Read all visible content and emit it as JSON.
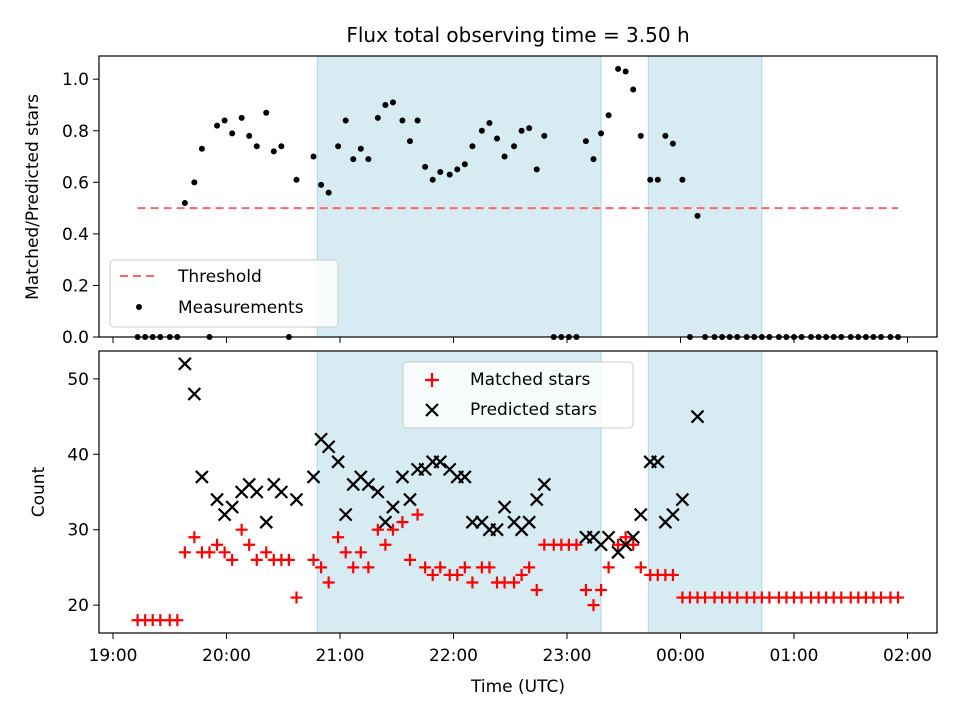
{
  "title": "Flux total observing time = 3.50 h",
  "xlabel": "Time (UTC)",
  "x_ticks": [
    "19:00",
    "20:00",
    "21:00",
    "22:00",
    "23:00",
    "00:00",
    "01:00",
    "02:00"
  ],
  "colors": {
    "shade": "#add8e6",
    "threshold": "#ff6666",
    "matched": "#ff0000",
    "predicted": "#000000"
  },
  "chart_data": [
    {
      "type": "scatter",
      "ylabel": "Matched/Predicted stars",
      "ylim": [
        0,
        1.09
      ],
      "y_ticks": [
        "0.0",
        "0.2",
        "0.4",
        "0.6",
        "0.8",
        "1.0"
      ],
      "legend_position": "lower-left",
      "threshold": {
        "name": "Threshold",
        "value": 0.5,
        "x_range": [
          "19:13",
          "01:55"
        ]
      },
      "shaded_spans": [
        [
          "20:48",
          "23:18"
        ],
        [
          "23:43",
          "00:43"
        ]
      ],
      "series": [
        {
          "name": "Measurements",
          "marker": "dot",
          "points": [
            [
              "19:13",
              0
            ],
            [
              "19:17",
              0
            ],
            [
              "19:21",
              0
            ],
            [
              "19:25",
              0
            ],
            [
              "19:30",
              0
            ],
            [
              "19:34",
              0
            ],
            [
              "19:38",
              0.52
            ],
            [
              "19:43",
              0.6
            ],
            [
              "19:47",
              0.73
            ],
            [
              "19:51",
              0
            ],
            [
              "19:55",
              0.82
            ],
            [
              "19:59",
              0.84
            ],
            [
              "20:03",
              0.79
            ],
            [
              "20:08",
              0.85
            ],
            [
              "20:12",
              0.78
            ],
            [
              "20:16",
              0.74
            ],
            [
              "20:21",
              0.87
            ],
            [
              "20:25",
              0.72
            ],
            [
              "20:29",
              0.74
            ],
            [
              "20:33",
              0
            ],
            [
              "20:37",
              0.61
            ],
            [
              "20:46",
              0.7
            ],
            [
              "20:50",
              0.59
            ],
            [
              "20:54",
              0.56
            ],
            [
              "20:59",
              0.74
            ],
            [
              "21:03",
              0.84
            ],
            [
              "21:07",
              0.69
            ],
            [
              "21:11",
              0.73
            ],
            [
              "21:15",
              0.69
            ],
            [
              "21:20",
              0.85
            ],
            [
              "21:24",
              0.9
            ],
            [
              "21:28",
              0.91
            ],
            [
              "21:33",
              0.84
            ],
            [
              "21:37",
              0.76
            ],
            [
              "21:41",
              0.84
            ],
            [
              "21:45",
              0.66
            ],
            [
              "21:49",
              0.61
            ],
            [
              "21:53",
              0.64
            ],
            [
              "21:58",
              0.63
            ],
            [
              "22:02",
              0.65
            ],
            [
              "22:06",
              0.67
            ],
            [
              "22:10",
              0.74
            ],
            [
              "22:15",
              0.8
            ],
            [
              "22:19",
              0.83
            ],
            [
              "22:23",
              0.77
            ],
            [
              "22:27",
              0.7
            ],
            [
              "22:32",
              0.74
            ],
            [
              "22:36",
              0.8
            ],
            [
              "22:40",
              0.81
            ],
            [
              "22:44",
              0.65
            ],
            [
              "22:48",
              0.78
            ],
            [
              "22:53",
              0
            ],
            [
              "22:57",
              0
            ],
            [
              "23:01",
              0
            ],
            [
              "23:05",
              0
            ],
            [
              "23:10",
              0.76
            ],
            [
              "23:14",
              0.69
            ],
            [
              "23:18",
              0.79
            ],
            [
              "23:22",
              0.86
            ],
            [
              "23:27",
              1.04
            ],
            [
              "23:31",
              1.03
            ],
            [
              "23:35",
              0.96
            ],
            [
              "23:39",
              0.78
            ],
            [
              "23:44",
              0.61
            ],
            [
              "23:48",
              0.61
            ],
            [
              "23:52",
              0.78
            ],
            [
              "23:56",
              0.75
            ],
            [
              "00:01",
              0.61
            ],
            [
              "00:05",
              0
            ],
            [
              "00:09",
              0.47
            ],
            [
              "00:13",
              0
            ],
            [
              "00:18",
              0
            ],
            [
              "00:22",
              0
            ],
            [
              "00:26",
              0
            ],
            [
              "00:30",
              0
            ],
            [
              "00:35",
              0
            ],
            [
              "00:39",
              0
            ],
            [
              "00:43",
              0
            ],
            [
              "00:47",
              0
            ],
            [
              "00:52",
              0
            ],
            [
              "00:56",
              0
            ],
            [
              "01:00",
              0
            ],
            [
              "01:04",
              0
            ],
            [
              "01:09",
              0
            ],
            [
              "01:13",
              0
            ],
            [
              "01:17",
              0
            ],
            [
              "01:21",
              0
            ],
            [
              "01:25",
              0
            ],
            [
              "01:30",
              0
            ],
            [
              "01:34",
              0
            ],
            [
              "01:38",
              0
            ],
            [
              "01:42",
              0
            ],
            [
              "01:46",
              0
            ],
            [
              "01:51",
              0
            ],
            [
              "01:55",
              0
            ]
          ]
        }
      ]
    },
    {
      "type": "scatter",
      "ylabel": "Count",
      "ylim": [
        16.3,
        53.7
      ],
      "y_ticks": [
        "20",
        "30",
        "40",
        "50"
      ],
      "legend_position": "top-center",
      "shaded_spans": [
        [
          "20:48",
          "23:18"
        ],
        [
          "23:43",
          "00:43"
        ]
      ],
      "series": [
        {
          "name": "Matched stars",
          "marker": "plus",
          "points": [
            [
              "19:13",
              18
            ],
            [
              "19:17",
              18
            ],
            [
              "19:21",
              18
            ],
            [
              "19:25",
              18
            ],
            [
              "19:30",
              18
            ],
            [
              "19:34",
              18
            ],
            [
              "19:38",
              27
            ],
            [
              "19:43",
              29
            ],
            [
              "19:47",
              27
            ],
            [
              "19:51",
              27
            ],
            [
              "19:55",
              28
            ],
            [
              "19:59",
              27
            ],
            [
              "20:03",
              26
            ],
            [
              "20:08",
              30
            ],
            [
              "20:12",
              28
            ],
            [
              "20:16",
              26
            ],
            [
              "20:21",
              27
            ],
            [
              "20:25",
              26
            ],
            [
              "20:29",
              26
            ],
            [
              "20:33",
              26
            ],
            [
              "20:37",
              21
            ],
            [
              "20:46",
              26
            ],
            [
              "20:50",
              25
            ],
            [
              "20:54",
              23
            ],
            [
              "20:59",
              29
            ],
            [
              "21:03",
              27
            ],
            [
              "21:07",
              25
            ],
            [
              "21:11",
              27
            ],
            [
              "21:15",
              25
            ],
            [
              "21:20",
              30
            ],
            [
              "21:24",
              28
            ],
            [
              "21:28",
              30
            ],
            [
              "21:33",
              31
            ],
            [
              "21:37",
              26
            ],
            [
              "21:41",
              32
            ],
            [
              "21:45",
              25
            ],
            [
              "21:49",
              24
            ],
            [
              "21:53",
              25
            ],
            [
              "21:58",
              24
            ],
            [
              "22:02",
              24
            ],
            [
              "22:06",
              25
            ],
            [
              "22:10",
              23
            ],
            [
              "22:15",
              25
            ],
            [
              "22:19",
              25
            ],
            [
              "22:23",
              23
            ],
            [
              "22:27",
              23
            ],
            [
              "22:32",
              23
            ],
            [
              "22:36",
              24
            ],
            [
              "22:40",
              25
            ],
            [
              "22:44",
              22
            ],
            [
              "22:48",
              28
            ],
            [
              "22:53",
              28
            ],
            [
              "22:57",
              28
            ],
            [
              "23:01",
              28
            ],
            [
              "23:05",
              28
            ],
            [
              "23:10",
              22
            ],
            [
              "23:14",
              20
            ],
            [
              "23:18",
              22
            ],
            [
              "23:22",
              25
            ],
            [
              "23:27",
              28
            ],
            [
              "23:31",
              29
            ],
            [
              "23:35",
              28
            ],
            [
              "23:39",
              25
            ],
            [
              "23:44",
              24
            ],
            [
              "23:48",
              24
            ],
            [
              "23:52",
              24
            ],
            [
              "23:56",
              24
            ],
            [
              "00:01",
              21
            ],
            [
              "00:05",
              21
            ],
            [
              "00:09",
              21
            ],
            [
              "00:13",
              21
            ],
            [
              "00:18",
              21
            ],
            [
              "00:22",
              21
            ],
            [
              "00:26",
              21
            ],
            [
              "00:30",
              21
            ],
            [
              "00:35",
              21
            ],
            [
              "00:39",
              21
            ],
            [
              "00:43",
              21
            ],
            [
              "00:47",
              21
            ],
            [
              "00:52",
              21
            ],
            [
              "00:56",
              21
            ],
            [
              "01:00",
              21
            ],
            [
              "01:04",
              21
            ],
            [
              "01:09",
              21
            ],
            [
              "01:13",
              21
            ],
            [
              "01:17",
              21
            ],
            [
              "01:21",
              21
            ],
            [
              "01:25",
              21
            ],
            [
              "01:30",
              21
            ],
            [
              "01:34",
              21
            ],
            [
              "01:38",
              21
            ],
            [
              "01:42",
              21
            ],
            [
              "01:46",
              21
            ],
            [
              "01:51",
              21
            ],
            [
              "01:55",
              21
            ]
          ]
        },
        {
          "name": "Predicted stars",
          "marker": "x",
          "points": [
            [
              "19:38",
              52
            ],
            [
              "19:43",
              48
            ],
            [
              "19:47",
              37
            ],
            [
              "19:55",
              34
            ],
            [
              "19:59",
              32
            ],
            [
              "20:03",
              33
            ],
            [
              "20:08",
              35
            ],
            [
              "20:12",
              36
            ],
            [
              "20:16",
              35
            ],
            [
              "20:21",
              31
            ],
            [
              "20:25",
              36
            ],
            [
              "20:29",
              35
            ],
            [
              "20:37",
              34
            ],
            [
              "20:46",
              37
            ],
            [
              "20:50",
              42
            ],
            [
              "20:54",
              41
            ],
            [
              "20:59",
              39
            ],
            [
              "21:03",
              32
            ],
            [
              "21:07",
              36
            ],
            [
              "21:11",
              37
            ],
            [
              "21:15",
              36
            ],
            [
              "21:20",
              35
            ],
            [
              "21:24",
              31
            ],
            [
              "21:28",
              33
            ],
            [
              "21:33",
              37
            ],
            [
              "21:37",
              34
            ],
            [
              "21:41",
              38
            ],
            [
              "21:45",
              38
            ],
            [
              "21:49",
              39
            ],
            [
              "21:53",
              39
            ],
            [
              "21:58",
              38
            ],
            [
              "22:02",
              37
            ],
            [
              "22:06",
              37
            ],
            [
              "22:10",
              31
            ],
            [
              "22:15",
              31
            ],
            [
              "22:19",
              30
            ],
            [
              "22:23",
              30
            ],
            [
              "22:27",
              33
            ],
            [
              "22:32",
              31
            ],
            [
              "22:36",
              30
            ],
            [
              "22:40",
              31
            ],
            [
              "22:44",
              34
            ],
            [
              "22:48",
              36
            ],
            [
              "23:10",
              29
            ],
            [
              "23:14",
              29
            ],
            [
              "23:18",
              28
            ],
            [
              "23:22",
              29
            ],
            [
              "23:27",
              27
            ],
            [
              "23:31",
              28
            ],
            [
              "23:35",
              29
            ],
            [
              "23:39",
              32
            ],
            [
              "23:44",
              39
            ],
            [
              "23:48",
              39
            ],
            [
              "23:52",
              31
            ],
            [
              "23:56",
              32
            ],
            [
              "00:01",
              34
            ],
            [
              "00:09",
              45
            ]
          ]
        }
      ]
    }
  ]
}
